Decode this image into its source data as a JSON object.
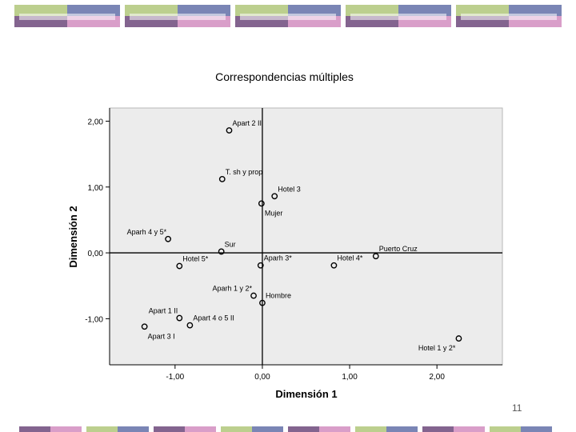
{
  "colors": {
    "green": "#bccf8e",
    "blue": "#7a85b5",
    "purple": "#83648f",
    "pink": "#d99ec9",
    "plot_bg": "#ececec",
    "axis": "#000000",
    "text": "#000000"
  },
  "slide": {
    "page_number": "11"
  },
  "chart_data": {
    "type": "scatter",
    "title": "Correspondencias múltiples",
    "xlabel": "Dimensión 1",
    "ylabel": "Dimensión 2",
    "xlim": [
      -1.75,
      2.75
    ],
    "ylim": [
      -1.7,
      2.2
    ],
    "xticks": [
      -1.0,
      0.0,
      1.0,
      2.0
    ],
    "xtick_labels": [
      "-1,00",
      "0,00",
      "1,00",
      "2,00"
    ],
    "yticks": [
      -1.0,
      0.0,
      1.0,
      2.0
    ],
    "ytick_labels": [
      "-1,00",
      "0,00",
      "1,00",
      "2,00"
    ],
    "grid": false,
    "reference_lines": {
      "x": 0,
      "y": 0
    },
    "points": [
      {
        "label": "Apart 2 II",
        "x": -0.38,
        "y": 1.86,
        "label_pos": "above-right"
      },
      {
        "label": "T. sh y prop",
        "x": -0.46,
        "y": 1.12,
        "label_pos": "above-right"
      },
      {
        "label": "Hotel 3",
        "x": 0.14,
        "y": 0.86,
        "label_pos": "above-right"
      },
      {
        "label": "Mujer",
        "x": -0.01,
        "y": 0.75,
        "label_pos": "below-right"
      },
      {
        "label": "Aparh 4 y 5*",
        "x": -1.08,
        "y": 0.21,
        "label_pos": "above-left"
      },
      {
        "label": "Sur",
        "x": -0.47,
        "y": 0.02,
        "label_pos": "above-right"
      },
      {
        "label": "Hotel 5*",
        "x": -0.95,
        "y": -0.2,
        "label_pos": "above-right"
      },
      {
        "label": "Aparh 3*",
        "x": -0.02,
        "y": -0.19,
        "label_pos": "above-right"
      },
      {
        "label": "Hotel 4*",
        "x": 0.82,
        "y": -0.19,
        "label_pos": "above-right"
      },
      {
        "label": "Puerto Cruz",
        "x": 1.3,
        "y": -0.05,
        "label_pos": "above-right"
      },
      {
        "label": "Aparh 1 y 2*",
        "x": -0.1,
        "y": -0.65,
        "label_pos": "above-left"
      },
      {
        "label": "Hombre",
        "x": 0.0,
        "y": -0.76,
        "label_pos": "above-right"
      },
      {
        "label": "Apart 1 II",
        "x": -0.95,
        "y": -0.99,
        "label_pos": "above-left"
      },
      {
        "label": "Apart 4 o 5 II",
        "x": -0.83,
        "y": -1.1,
        "label_pos": "above-right"
      },
      {
        "label": "Apart 3 I",
        "x": -1.35,
        "y": -1.12,
        "label_pos": "below-right"
      },
      {
        "label": "Hotel 1 y 2*",
        "x": 2.25,
        "y": -1.3,
        "label_pos": "below-left"
      }
    ]
  }
}
